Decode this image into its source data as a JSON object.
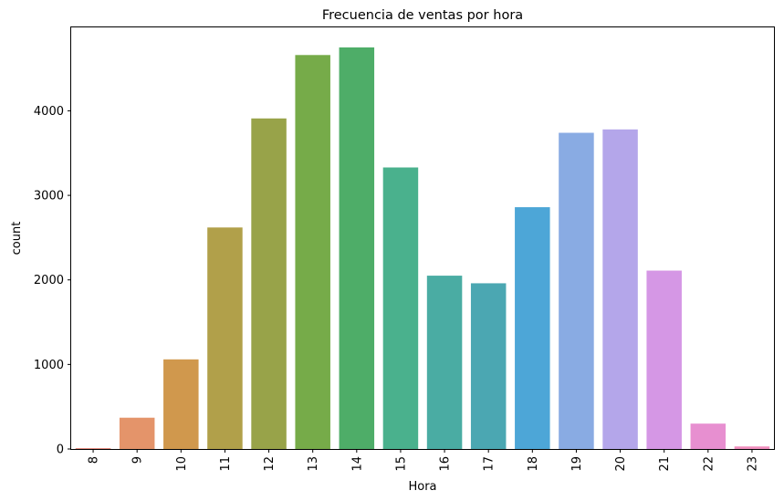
{
  "chart_data": {
    "type": "bar",
    "title": "Frecuencia de ventas por hora",
    "xlabel": "Hora",
    "ylabel": "count",
    "categories": [
      "8",
      "9",
      "10",
      "11",
      "12",
      "13",
      "14",
      "15",
      "16",
      "17",
      "18",
      "19",
      "20",
      "21",
      "22",
      "23"
    ],
    "values": [
      10,
      370,
      1060,
      2620,
      3910,
      4660,
      4750,
      3330,
      2050,
      1960,
      2860,
      3740,
      3780,
      2110,
      300,
      30
    ],
    "colors": [
      "#e8887a",
      "#e4946a",
      "#d0984d",
      "#b1a04a",
      "#98a349",
      "#76ab49",
      "#4ead68",
      "#4ab18d",
      "#4aaca3",
      "#4ba7b2",
      "#4da6d7",
      "#89abe3",
      "#b4a6ea",
      "#d597e5",
      "#e78fd0",
      "#f08fbe"
    ],
    "ylim": [
      0,
      4987
    ],
    "yticks": [
      0,
      1000,
      2000,
      3000,
      4000
    ],
    "grid": false,
    "legend": "none"
  }
}
